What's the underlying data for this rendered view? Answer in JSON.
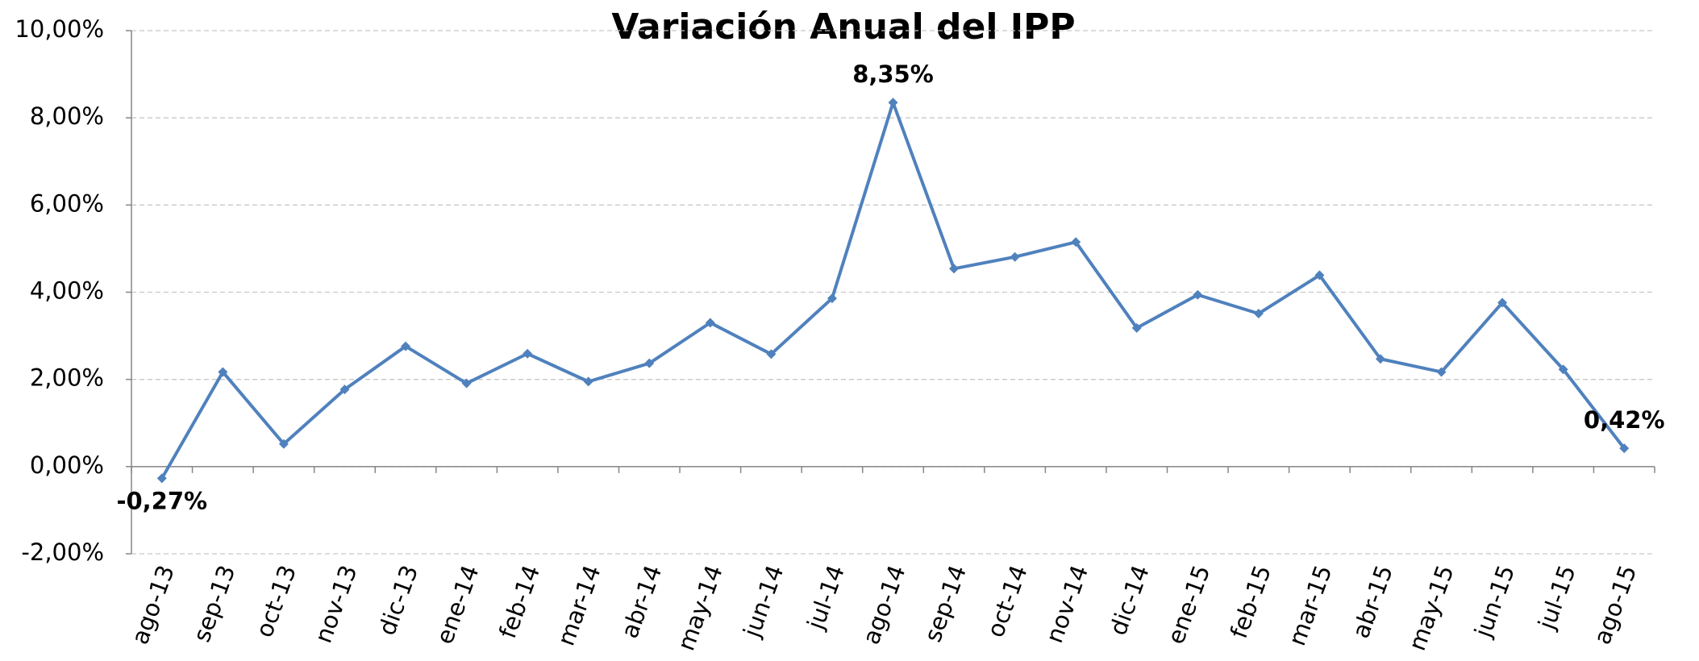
{
  "chart_data": {
    "type": "line",
    "title": "Variación Anual del IPP",
    "categories": [
      "ago-13",
      "sep-13",
      "oct-13",
      "nov-13",
      "dic-13",
      "ene-14",
      "feb-14",
      "mar-14",
      "abr-14",
      "may-14",
      "jun-14",
      "jul-14",
      "ago-14",
      "sep-14",
      "oct-14",
      "nov-14",
      "dic-14",
      "ene-15",
      "feb-15",
      "mar-15",
      "abr-15",
      "may-15",
      "jun-15",
      "jul-15",
      "ago-15"
    ],
    "values": [
      -0.27,
      2.17,
      0.52,
      1.77,
      2.76,
      1.91,
      2.59,
      1.95,
      2.37,
      3.3,
      2.58,
      3.86,
      8.35,
      4.54,
      4.81,
      5.15,
      3.18,
      3.94,
      3.51,
      4.39,
      2.47,
      2.17,
      3.76,
      2.23,
      0.42
    ],
    "value_labels": [
      "-0,27%",
      null,
      null,
      null,
      null,
      null,
      null,
      null,
      null,
      null,
      null,
      null,
      "8,35%",
      null,
      null,
      null,
      null,
      null,
      null,
      null,
      null,
      null,
      null,
      null,
      "0,42%"
    ],
    "color": "#4f81bd",
    "ylim": [
      -2,
      10
    ],
    "yticks": [
      {
        "value": -2,
        "label": "-2,00%"
      },
      {
        "value": 0,
        "label": "0,00%"
      },
      {
        "value": 2,
        "label": "2,00%"
      },
      {
        "value": 4,
        "label": "4,00%"
      },
      {
        "value": 6,
        "label": "6,00%"
      },
      {
        "value": 8,
        "label": "8,00%"
      },
      {
        "value": 10,
        "label": "10,00%"
      }
    ],
    "grid": true
  }
}
